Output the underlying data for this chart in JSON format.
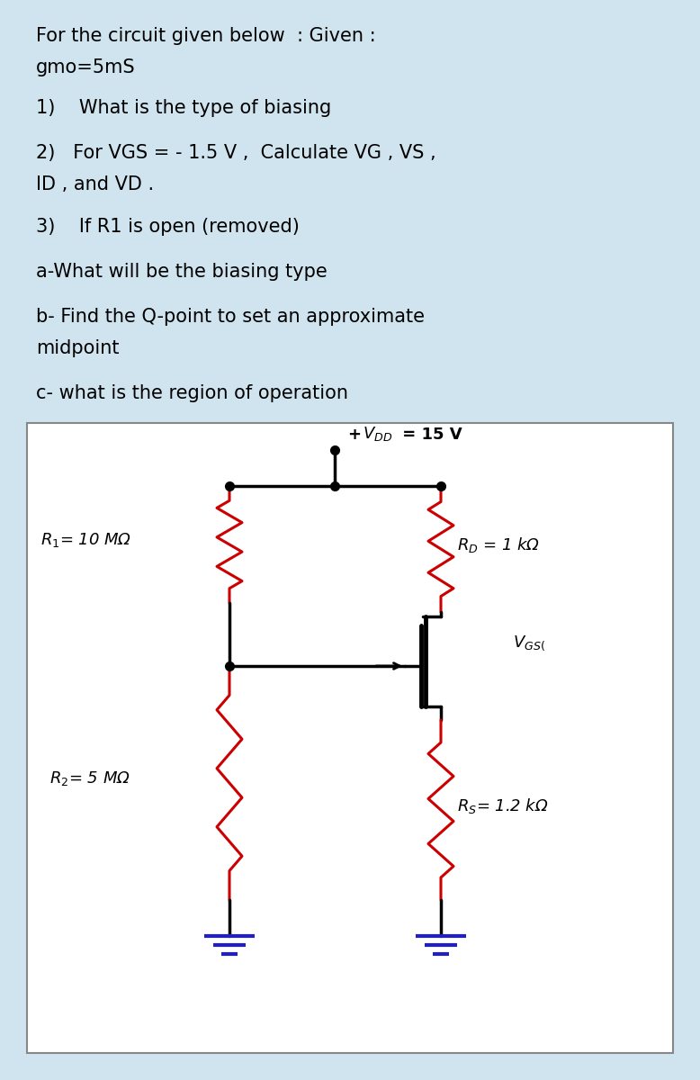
{
  "bg_color": "#d0e4f0",
  "circuit_bg": "#ffffff",
  "text_color": "#000000",
  "red_color": "#cc0000",
  "blue_color": "#2222bb",
  "black": "#000000",
  "title_line1": "For the circuit given below  : Given :",
  "title_line2": "gmo=5mS",
  "q1": "1)    What is the type of biasing",
  "q2_line1": "2)   For VGS = - 1.5 V ,  Calculate VG , VS ,",
  "q2_line2": "ID , and VD .",
  "q3": "3)    If R1 is open (removed)",
  "qa": "a-What will be the biasing type",
  "qb_line1": "b- Find the Q-point to set an approximate",
  "qb_line2": "midpoint",
  "qc": "c- what is the region of operation",
  "font_size_text": 15,
  "font_size_circuit": 13
}
